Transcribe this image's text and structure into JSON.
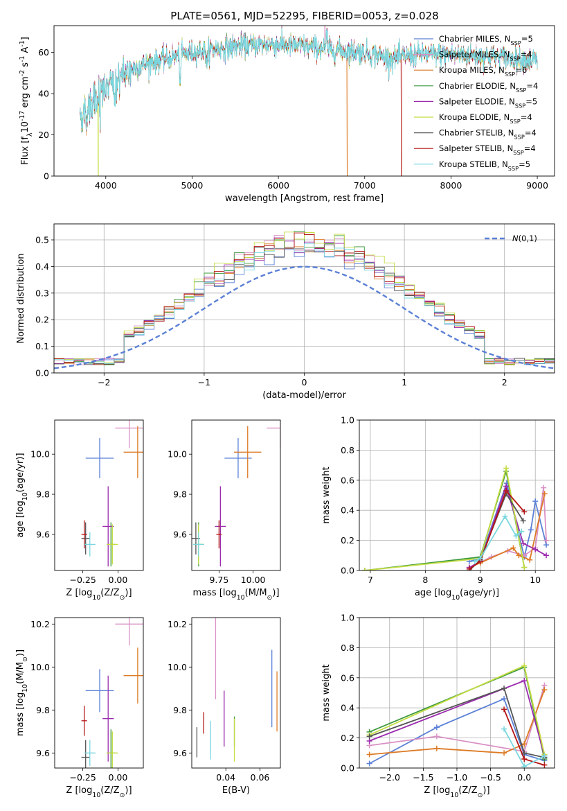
{
  "colors": [
    "#5b80d6",
    "#d990c4",
    "#dd7a25",
    "#3f9a3f",
    "#9b2cae",
    "#c4dc42",
    "#555555",
    "#b41616",
    "#7ad7df"
  ],
  "chart_data": [
    {
      "type": "line",
      "title": "PLATE=0561, MJD=52295, FIBERID=0053, z=0.028",
      "xlabel": "wavelength [Angstrom, rest frame]",
      "ylabel": "Flux [f$_\\lambda$10$^{-17}$ erg cm$^{-2}$ s$^{-1}$ A$^{-1}$]",
      "xlim": [
        3400,
        9200
      ],
      "ylim": [
        0,
        73
      ],
      "xticks": [
        "4000",
        "5000",
        "6000",
        "7000",
        "8000",
        "9000"
      ],
      "yticks": [
        "0",
        "20",
        "40",
        "60"
      ],
      "legend_position": "top-right",
      "legend": [
        "Chabrier MILES, N$_{SSP}$=5",
        "Salpeter MILES, N$_{SSP}$=4",
        "Kroupa MILES, N$_{SSP}$=6",
        "Chabrier ELODIE, N$_{SSP}$=4",
        "Salpeter ELODIE, N$_{SSP}$=5",
        "Kroupa ELODIE, N$_{SSP}$=4",
        "Chabrier STELIB, N$_{SSP}$=4",
        "Salpeter STELIB, N$_{SSP}$=4",
        "Kroupa STELIB, N$_{SSP}$=5"
      ],
      "continuum": {
        "x": [
          3700,
          3900,
          4050,
          4300,
          4600,
          5000,
          5500,
          6000,
          6500,
          7000,
          7300,
          7600,
          8000,
          8500,
          9000
        ],
        "y": [
          28,
          38,
          44,
          52,
          56,
          60,
          63,
          64,
          62,
          60,
          57,
          59,
          59,
          58,
          56
        ]
      }
    },
    {
      "type": "histogram",
      "xlabel": "(data-model)/error",
      "ylabel": "Normed distribution",
      "xlim": [
        -2.5,
        2.5
      ],
      "ylim": [
        0,
        0.56
      ],
      "xticks": [
        "−2",
        "−1",
        "0",
        "1",
        "2"
      ],
      "yticks": [
        "0.0",
        "0.1",
        "0.2",
        "0.3",
        "0.4",
        "0.5"
      ],
      "grid": true,
      "legend_position": "top-right",
      "reference_label": "$\\mathcal{N}(0,1)$",
      "bin_width": 0.1,
      "bins": [
        -2.5,
        2.5
      ]
    },
    {
      "type": "scatter",
      "xlabel": "Z [log$_{10}$(Z/Z$_\\odot$)]",
      "ylabel": "age  [log$_{10}$(age/yr)]",
      "xlim": [
        -0.45,
        0.18
      ],
      "ylim": [
        9.42,
        10.17
      ],
      "xticks": [
        "−0.25",
        "0.00"
      ],
      "yticks": [
        "9.6",
        "9.8",
        "10.0"
      ],
      "points": [
        {
          "x": -0.13,
          "y": 9.98,
          "xerr": 0.1,
          "yerr": 0.1
        },
        {
          "x": 0.08,
          "y": 10.13,
          "xerr": 0.1,
          "yerr": 0.1
        },
        {
          "x": 0.14,
          "y": 10.01,
          "xerr": 0.1,
          "yerr": 0.13
        },
        {
          "x": -0.05,
          "y": 9.55,
          "xerr": 0.03,
          "yerr": 0.11
        },
        {
          "x": -0.07,
          "y": 9.64,
          "xerr": 0.04,
          "yerr": 0.2
        },
        {
          "x": -0.04,
          "y": 9.55,
          "xerr": 0.04,
          "yerr": 0.1
        },
        {
          "x": -0.23,
          "y": 9.58,
          "xerr": 0.03,
          "yerr": 0.08
        },
        {
          "x": -0.24,
          "y": 9.6,
          "xerr": 0.02,
          "yerr": 0.07
        },
        {
          "x": -0.2,
          "y": 9.55,
          "xerr": 0.04,
          "yerr": 0.06
        }
      ]
    },
    {
      "type": "scatter",
      "xlabel": "mass [log$_{10}$(M/M$_\\odot$)]",
      "ylabel": "",
      "xlim": [
        9.55,
        10.2
      ],
      "ylim": [
        9.42,
        10.17
      ],
      "xticks": [
        "9.75",
        "10.00"
      ],
      "yticks": [
        "9.6",
        "9.8",
        "10.0"
      ],
      "points": [
        {
          "x": 9.89,
          "y": 9.98,
          "xerr": 0.1,
          "yerr": 0.1
        },
        {
          "x": 10.2,
          "y": 10.13,
          "xerr": 0.1,
          "yerr": 0.1
        },
        {
          "x": 9.96,
          "y": 10.01,
          "xerr": 0.1,
          "yerr": 0.13
        },
        {
          "x": 9.6,
          "y": 9.55,
          "xerr": 0.03,
          "yerr": 0.11
        },
        {
          "x": 9.76,
          "y": 9.64,
          "xerr": 0.04,
          "yerr": 0.2
        },
        {
          "x": 9.6,
          "y": 9.55,
          "xerr": 0.04,
          "yerr": 0.1
        },
        {
          "x": 9.58,
          "y": 9.58,
          "xerr": 0.03,
          "yerr": 0.08
        },
        {
          "x": 9.75,
          "y": 9.6,
          "xerr": 0.02,
          "yerr": 0.07
        },
        {
          "x": 9.6,
          "y": 9.55,
          "xerr": 0.04,
          "yerr": 0.06
        }
      ]
    },
    {
      "type": "line",
      "xlabel": "age  [log$_{10}$(age/yr)]",
      "ylabel": "mass weight",
      "xlim": [
        6.8,
        10.35
      ],
      "ylim": [
        0,
        1
      ],
      "xticks": [
        "7",
        "8",
        "9",
        "10"
      ],
      "yticks": [
        "0.0",
        "0.2",
        "0.4",
        "0.6",
        "0.8",
        "1.0"
      ],
      "grid": true,
      "series": [
        {
          "x": [
            8.8,
            9.0,
            9.48,
            9.8,
            9.92,
            10.0,
            10.2
          ],
          "y": [
            0.06,
            0.08,
            0.58,
            0.09,
            0.27,
            0.46,
            0.17
          ]
        },
        {
          "x": [
            8.8,
            9.2,
            9.5,
            9.8,
            10.0,
            10.15,
            10.2
          ],
          "y": [
            0.02,
            0.09,
            0.13,
            0.1,
            0.15,
            0.55,
            0.2
          ]
        },
        {
          "x": [
            8.8,
            9.0,
            9.6,
            9.7,
            9.9,
            10.17
          ],
          "y": [
            0.02,
            0.05,
            0.15,
            0.1,
            0.07,
            0.51
          ]
        },
        {
          "x": [
            6.9,
            9.0,
            9.47,
            9.8
          ],
          "y": [
            0.0,
            0.09,
            0.66,
            0.02
          ]
        },
        {
          "x": [
            8.8,
            9.0,
            9.47,
            9.78,
            10.0,
            10.2
          ],
          "y": [
            0.02,
            0.06,
            0.56,
            0.18,
            0.14,
            0.1
          ]
        },
        {
          "x": [
            6.9,
            9.0,
            9.47,
            9.8
          ],
          "y": [
            0.0,
            0.08,
            0.68,
            0.02
          ]
        },
        {
          "x": [
            8.8,
            9.0,
            9.47,
            9.78
          ],
          "y": [
            0.0,
            0.07,
            0.51,
            0.33
          ]
        },
        {
          "x": [
            8.8,
            9.0,
            9.47,
            9.8
          ],
          "y": [
            0.01,
            0.06,
            0.53,
            0.39
          ]
        },
        {
          "x": [
            8.9,
            9.0,
            9.45,
            9.65,
            9.75
          ],
          "y": [
            0.06,
            0.08,
            0.36,
            0.23,
            0.26
          ]
        }
      ]
    },
    {
      "type": "scatter",
      "xlabel": "Z [log$_{10}$(Z/Z$_\\odot$)]",
      "ylabel": "mass [log$_{10}$(M/M$_\\odot$)]",
      "xlim": [
        -0.45,
        0.18
      ],
      "ylim": [
        9.53,
        10.23
      ],
      "xticks": [
        "−0.25",
        "0.00"
      ],
      "yticks": [
        "9.6",
        "9.8",
        "10.0",
        "10.2"
      ],
      "points": [
        {
          "x": -0.13,
          "y": 9.89,
          "xerr": 0.1,
          "yerr": 0.1
        },
        {
          "x": 0.08,
          "y": 10.2,
          "xerr": 0.1,
          "yerr": 0.1
        },
        {
          "x": 0.14,
          "y": 9.96,
          "xerr": 0.1,
          "yerr": 0.13
        },
        {
          "x": -0.05,
          "y": 9.6,
          "xerr": 0.03,
          "yerr": 0.11
        },
        {
          "x": -0.07,
          "y": 9.76,
          "xerr": 0.04,
          "yerr": 0.2
        },
        {
          "x": -0.04,
          "y": 9.6,
          "xerr": 0.04,
          "yerr": 0.1
        },
        {
          "x": -0.23,
          "y": 9.58,
          "xerr": 0.03,
          "yerr": 0.08
        },
        {
          "x": -0.24,
          "y": 9.75,
          "xerr": 0.02,
          "yerr": 0.07
        },
        {
          "x": -0.2,
          "y": 9.6,
          "xerr": 0.04,
          "yerr": 0.06
        }
      ]
    },
    {
      "type": "scatter",
      "xlabel": "E(B-V)",
      "ylabel": "",
      "xlim": [
        0.02,
        0.072
      ],
      "ylim": [
        9.53,
        10.23
      ],
      "xticks": [
        "0.04",
        "0.06"
      ],
      "yticks": [
        "9.6",
        "9.8",
        "10.0",
        "10.2"
      ],
      "points": [
        {
          "x": 0.067,
          "y": 9.9,
          "yerr": 0.18
        },
        {
          "x": 0.034,
          "y": 10.05,
          "yerr": 0.2
        },
        {
          "x": 0.07,
          "y": 9.84,
          "yerr": 0.14
        },
        {
          "x": 0.045,
          "y": 9.7,
          "yerr": 0.07
        },
        {
          "x": 0.039,
          "y": 9.76,
          "yerr": 0.13
        },
        {
          "x": 0.045,
          "y": 9.66,
          "yerr": 0.1
        },
        {
          "x": 0.023,
          "y": 9.65,
          "yerr": 0.07
        },
        {
          "x": 0.027,
          "y": 9.74,
          "yerr": 0.05
        },
        {
          "x": 0.031,
          "y": 9.66,
          "yerr": 0.09
        }
      ]
    },
    {
      "type": "line",
      "xlabel": "Z [log$_{10}$(Z/Z$_\\odot$)]",
      "ylabel": "mass weight",
      "xlim": [
        -2.45,
        0.45
      ],
      "ylim": [
        0,
        1
      ],
      "xticks": [
        "−2.0",
        "−1.5",
        "−1.0",
        "−0.5",
        "0.0"
      ],
      "yticks": [
        "0.0",
        "0.2",
        "0.4",
        "0.6",
        "0.8",
        "1.0"
      ],
      "grid": true,
      "series": [
        {
          "x": [
            -2.3,
            -1.3,
            -0.3,
            0.0,
            0.3
          ],
          "y": [
            0.03,
            0.27,
            0.46,
            0.09,
            0.05
          ]
        },
        {
          "x": [
            -2.3,
            -1.3,
            0.0,
            0.3
          ],
          "y": [
            0.15,
            0.21,
            0.11,
            0.55
          ]
        },
        {
          "x": [
            -2.3,
            -1.3,
            -0.3,
            0.0,
            0.3
          ],
          "y": [
            0.09,
            0.13,
            0.1,
            0.16,
            0.52
          ]
        },
        {
          "x": [
            -2.3,
            0.0,
            0.3
          ],
          "y": [
            0.24,
            0.67,
            0.06
          ]
        },
        {
          "x": [
            -2.3,
            0.0,
            0.3
          ],
          "y": [
            0.18,
            0.58,
            0.08
          ]
        },
        {
          "x": [
            -2.3,
            0.0,
            0.3
          ],
          "y": [
            0.22,
            0.68,
            0.09
          ]
        },
        {
          "x": [
            -2.3,
            -0.3,
            0.0,
            0.3
          ],
          "y": [
            0.21,
            0.53,
            0.1,
            0.07
          ]
        },
        {
          "x": [
            -0.3,
            0.0,
            0.3
          ],
          "y": [
            0.39,
            0.06,
            0.02
          ]
        },
        {
          "x": [
            -0.3,
            0.0,
            0.3
          ],
          "y": [
            0.26,
            0.01,
            0.08
          ]
        }
      ]
    }
  ]
}
